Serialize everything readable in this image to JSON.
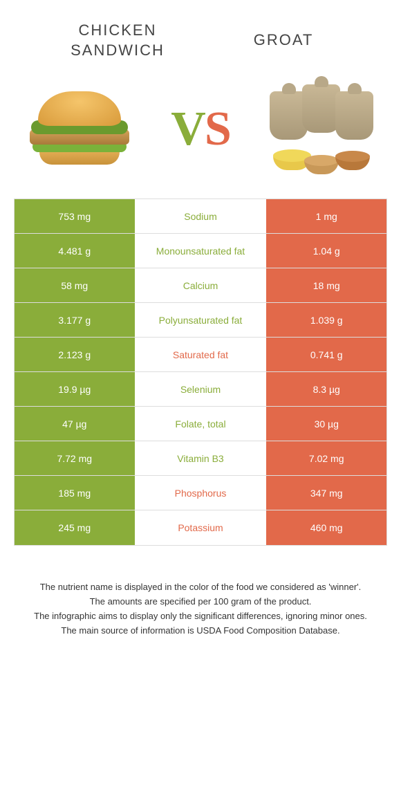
{
  "colors": {
    "left_winner": "#8aad3a",
    "right_winner": "#e2694a",
    "text": "#333333",
    "border": "#dddddd"
  },
  "header": {
    "left_title": "CHICKEN SANDWICH",
    "right_title": "GROAT",
    "vs_v": "V",
    "vs_s": "S"
  },
  "rows": [
    {
      "left": "753 mg",
      "label": "Sodium",
      "right": "1 mg",
      "winner": "left"
    },
    {
      "left": "4.481 g",
      "label": "Monounsaturated fat",
      "right": "1.04 g",
      "winner": "left"
    },
    {
      "left": "58 mg",
      "label": "Calcium",
      "right": "18 mg",
      "winner": "left"
    },
    {
      "left": "3.177 g",
      "label": "Polyunsaturated fat",
      "right": "1.039 g",
      "winner": "left"
    },
    {
      "left": "2.123 g",
      "label": "Saturated fat",
      "right": "0.741 g",
      "winner": "right"
    },
    {
      "left": "19.9 µg",
      "label": "Selenium",
      "right": "8.3 µg",
      "winner": "left"
    },
    {
      "left": "47 µg",
      "label": "Folate, total",
      "right": "30 µg",
      "winner": "left"
    },
    {
      "left": "7.72 mg",
      "label": "Vitamin B3",
      "right": "7.02 mg",
      "winner": "left"
    },
    {
      "left": "185 mg",
      "label": "Phosphorus",
      "right": "347 mg",
      "winner": "right"
    },
    {
      "left": "245 mg",
      "label": "Potassium",
      "right": "460 mg",
      "winner": "right"
    }
  ],
  "footer": {
    "line1": "The nutrient name is displayed in the color of the food we considered as 'winner'.",
    "line2": "The amounts are specified per 100 gram of the product.",
    "line3": "The infographic aims to display only the significant differences, ignoring minor ones.",
    "line4": "The main source of information is USDA Food Composition Database."
  }
}
